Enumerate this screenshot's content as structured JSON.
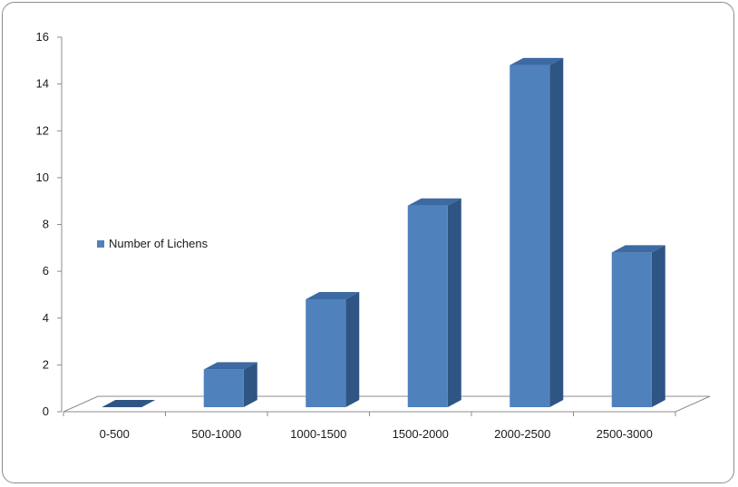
{
  "chart_data": {
    "type": "bar",
    "categories": [
      "0-500",
      "500-1000",
      "1000-1500",
      "1500-2000",
      "2000-2500",
      "2500-3000"
    ],
    "series": [
      {
        "name": "Number of Lichens",
        "values": [
          0,
          2,
          5,
          9,
          15,
          7
        ]
      }
    ],
    "ylim": [
      0,
      16
    ],
    "yticks": [
      0,
      2,
      4,
      6,
      8,
      10,
      12,
      14,
      16
    ],
    "grid": false,
    "legend": "left",
    "style": "3d-column",
    "colors": {
      "front": "#4f81bd",
      "side": "#2f5585",
      "top": "#3d6aa3"
    }
  }
}
